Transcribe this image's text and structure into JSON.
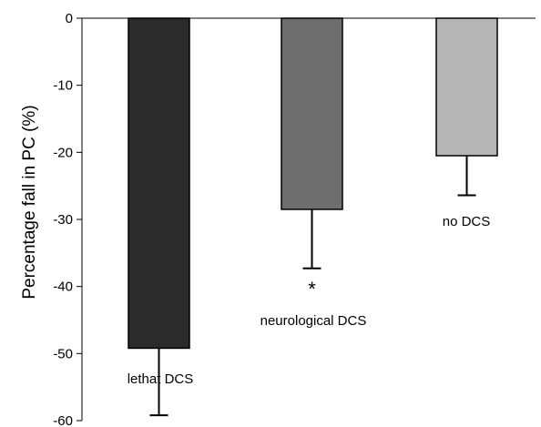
{
  "chart_data": {
    "type": "bar",
    "title": "",
    "xlabel": "",
    "ylabel": "Percentage fall in PC (%)",
    "ylim": [
      -60,
      0
    ],
    "yticks": [
      0,
      -10,
      -20,
      -30,
      -40,
      -50,
      -60
    ],
    "grid": false,
    "categories": [
      "lethat DCS",
      "neurological DCS",
      "no DCS"
    ],
    "values": [
      -49.2,
      -28.5,
      -20.5
    ],
    "error_low": [
      -59.2,
      -37.3,
      -26.4
    ],
    "colors": [
      "#2b2b2b",
      "#6e6e6e",
      "#b5b5b5"
    ],
    "annotations": [
      {
        "category": "neurological DCS",
        "text": "*"
      }
    ]
  }
}
